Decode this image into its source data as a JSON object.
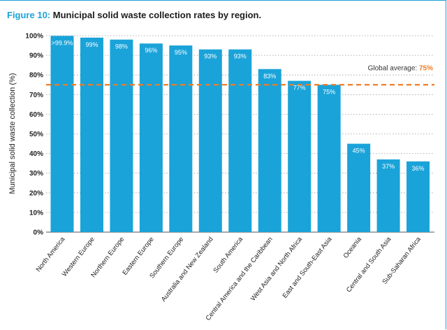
{
  "figure": {
    "label": "Figure 10:",
    "title": "Municipal solid waste collection rates by region."
  },
  "chart_data": {
    "type": "bar",
    "title": "Municipal solid waste collection rates by region.",
    "ylabel": "Municipal solid waste collection (%)",
    "xlabel": "",
    "ylim": [
      0,
      100
    ],
    "yticks": [
      0,
      10,
      20,
      30,
      40,
      50,
      60,
      70,
      80,
      90,
      100
    ],
    "ytick_labels": [
      "0%",
      "10%",
      "20%",
      "30%",
      "40%",
      "50%",
      "60%",
      "70%",
      "80%",
      "90%",
      "100%"
    ],
    "categories": [
      "North America",
      "Western Europe",
      "Northern Europe",
      "Eastern Europe",
      "Southern Europe",
      "Australia and New Zealand",
      "South America",
      "Central America and the Caribbean",
      "West Asia and North Africa",
      "East and South-East Asia",
      "Oceania",
      "Central and South Asia",
      "Sub-Saharan Africa"
    ],
    "values": [
      99.9,
      99,
      98,
      96,
      95,
      93,
      93,
      83,
      77,
      75,
      45,
      37,
      36
    ],
    "value_labels": [
      ">99.9%",
      "99%",
      "98%",
      "96%",
      "95%",
      "93%",
      "93%",
      "83%",
      "77%",
      "75%",
      "45%",
      "37%",
      "36%"
    ],
    "reference_line": {
      "value": 75,
      "label": "Global average:",
      "value_label": "75%"
    },
    "grid": "horizontal dotted",
    "colors": {
      "bar": "#1aa3d9",
      "average_line": "#f07b24",
      "title_accent": "#1aa3d9"
    }
  }
}
